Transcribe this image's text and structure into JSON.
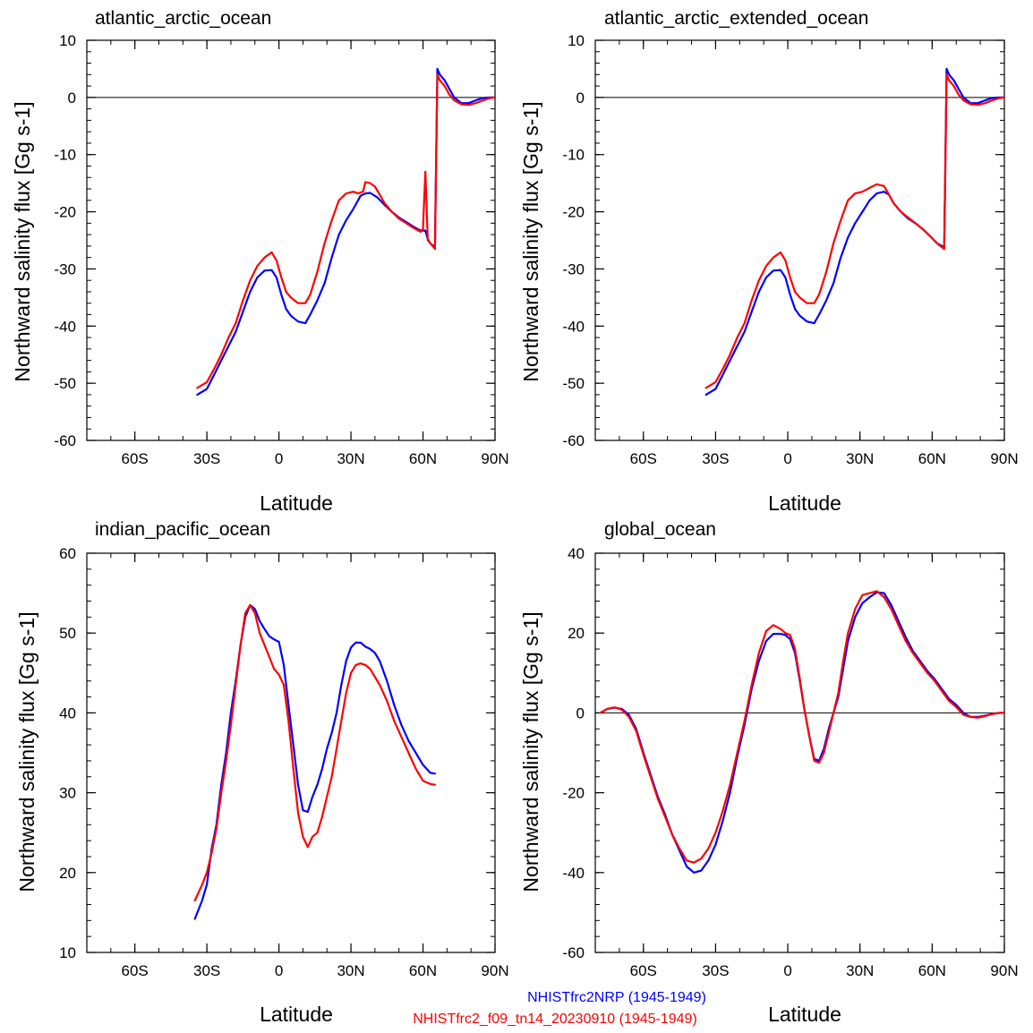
{
  "legend": [
    {
      "label": "NHISTfrc2NRP (1945-1949)",
      "color": "#0000ff"
    },
    {
      "label": "NHISTfrc2_f09_tn14_20230910 (1945-1949)",
      "color": "#ff0000"
    }
  ],
  "chart_data": [
    {
      "type": "line",
      "title": "atlantic_arctic_ocean",
      "xlabel": "Latitude",
      "ylabel": "Northward salinity flux [Gg s-1]",
      "xlim": [
        -80,
        90
      ],
      "ylim": [
        -60,
        10
      ],
      "xticks": [
        -60,
        -30,
        0,
        30,
        60,
        90
      ],
      "xticklabels": [
        "60S",
        "30S",
        "0",
        "30N",
        "60N",
        "90N"
      ],
      "yticks": [
        -60,
        -50,
        -40,
        -30,
        -20,
        -10,
        0,
        10
      ],
      "yticklabels": [
        "-60",
        "-50",
        "-40",
        "-30",
        "-20",
        "-10",
        "0",
        "10"
      ],
      "zero_line": true,
      "series": [
        {
          "name": "NHISTfrc2NRP (1945-1949)",
          "color": "#0000ff",
          "x": [
            -34,
            -30,
            -27,
            -24,
            -21,
            -18,
            -15,
            -12,
            -9,
            -6,
            -3,
            -1,
            1,
            3,
            5,
            8,
            11,
            13,
            16,
            19,
            22,
            25,
            28,
            31,
            34,
            36,
            38,
            41,
            44,
            47,
            50,
            53,
            56,
            59,
            61,
            62,
            63,
            65,
            66,
            67,
            69,
            71,
            73,
            76,
            79,
            82,
            85,
            88,
            90
          ],
          "y": [
            -52.0,
            -51.0,
            -48.5,
            -46.0,
            -43.5,
            -41.0,
            -37.5,
            -34.0,
            -31.5,
            -30.3,
            -30.2,
            -31.5,
            -34.5,
            -37.0,
            -38.2,
            -39.2,
            -39.5,
            -38.0,
            -35.5,
            -32.5,
            -28.0,
            -24.0,
            -21.5,
            -19.5,
            -17.2,
            -16.8,
            -16.7,
            -17.5,
            -18.8,
            -20.0,
            -21.0,
            -21.8,
            -22.6,
            -23.3,
            -23.3,
            -24.8,
            -25.5,
            -26.2,
            5.0,
            4.0,
            3.0,
            1.5,
            0.0,
            -1.0,
            -1.0,
            -0.5,
            -0.1,
            0.0,
            0.0
          ]
        },
        {
          "name": "NHISTfrc2_f09_tn14_20230910 (1945-1949)",
          "color": "#ff0000",
          "x": [
            -34,
            -30,
            -27,
            -24,
            -21,
            -18,
            -15,
            -12,
            -9,
            -6,
            -3,
            -1,
            1,
            3,
            5,
            8,
            11,
            13,
            16,
            19,
            22,
            25,
            28,
            31,
            33,
            35,
            36,
            38,
            40,
            42,
            44,
            47,
            50,
            53,
            56,
            59,
            60,
            61,
            62,
            63,
            65,
            66,
            67,
            69,
            71,
            73,
            76,
            79,
            82,
            85,
            88,
            90
          ],
          "y": [
            -50.8,
            -49.8,
            -47.5,
            -45.0,
            -42.0,
            -39.5,
            -35.5,
            -32.0,
            -29.5,
            -28.0,
            -27.1,
            -28.5,
            -31.5,
            -34.0,
            -35.0,
            -36.0,
            -36.0,
            -34.5,
            -30.5,
            -25.5,
            -21.5,
            -18.0,
            -16.8,
            -16.5,
            -16.8,
            -16.5,
            -14.8,
            -15.0,
            -15.6,
            -17.0,
            -18.5,
            -20.0,
            -21.2,
            -22.0,
            -22.8,
            -23.5,
            -23.0,
            -13.0,
            -25.0,
            -25.5,
            -26.5,
            4.0,
            3.0,
            2.0,
            0.5,
            -0.5,
            -1.2,
            -1.3,
            -1.0,
            -0.5,
            -0.1,
            0.0
          ]
        }
      ]
    },
    {
      "type": "line",
      "title": "atlantic_arctic_extended_ocean",
      "xlabel": "Latitude",
      "ylabel": "Northward salinity flux [Gg s-1]",
      "xlim": [
        -80,
        90
      ],
      "ylim": [
        -60,
        10
      ],
      "xticks": [
        -60,
        -30,
        0,
        30,
        60,
        90
      ],
      "xticklabels": [
        "60S",
        "30S",
        "0",
        "30N",
        "60N",
        "90N"
      ],
      "yticks": [
        -60,
        -50,
        -40,
        -30,
        -20,
        -10,
        0,
        10
      ],
      "yticklabels": [
        "-60",
        "-50",
        "-40",
        "-30",
        "-20",
        "-10",
        "0",
        "10"
      ],
      "zero_line": true,
      "series": [
        {
          "name": "NHISTfrc2NRP (1945-1949)",
          "color": "#0000ff",
          "x": [
            -34,
            -30,
            -27,
            -24,
            -21,
            -18,
            -15,
            -12,
            -9,
            -6,
            -3,
            -1,
            1,
            3,
            5,
            8,
            11,
            13,
            16,
            19,
            22,
            25,
            28,
            31,
            34,
            37,
            40,
            42,
            44,
            47,
            50,
            53,
            56,
            59,
            62,
            65,
            66,
            67,
            69,
            71,
            73,
            76,
            79,
            82,
            85,
            88,
            90
          ],
          "y": [
            -52.0,
            -51.0,
            -48.5,
            -46.0,
            -43.5,
            -41.0,
            -37.5,
            -34.0,
            -31.5,
            -30.3,
            -30.2,
            -31.5,
            -34.5,
            -37.0,
            -38.2,
            -39.2,
            -39.5,
            -38.0,
            -35.5,
            -32.5,
            -28.0,
            -24.5,
            -22.0,
            -20.0,
            -18.0,
            -16.8,
            -16.5,
            -17.0,
            -18.5,
            -20.0,
            -21.2,
            -22.0,
            -23.0,
            -24.2,
            -25.5,
            -26.2,
            5.0,
            4.0,
            3.0,
            1.5,
            0.0,
            -1.0,
            -1.0,
            -0.5,
            -0.1,
            0.0,
            0.0
          ]
        },
        {
          "name": "NHISTfrc2_f09_tn14_20230910 (1945-1949)",
          "color": "#ff0000",
          "x": [
            -34,
            -30,
            -27,
            -24,
            -21,
            -18,
            -15,
            -12,
            -9,
            -6,
            -3,
            -1,
            1,
            3,
            5,
            8,
            11,
            13,
            16,
            19,
            22,
            25,
            28,
            31,
            34,
            37,
            40,
            42,
            44,
            47,
            50,
            53,
            56,
            59,
            62,
            65,
            66,
            67,
            69,
            71,
            73,
            76,
            79,
            82,
            85,
            88,
            90
          ],
          "y": [
            -50.8,
            -49.8,
            -47.5,
            -45.0,
            -42.0,
            -39.5,
            -35.5,
            -32.0,
            -29.5,
            -28.0,
            -27.1,
            -28.5,
            -31.5,
            -34.0,
            -35.0,
            -36.0,
            -36.0,
            -34.5,
            -30.5,
            -25.5,
            -21.5,
            -18.0,
            -16.8,
            -16.5,
            -15.8,
            -15.2,
            -15.5,
            -17.0,
            -18.5,
            -20.0,
            -21.0,
            -22.0,
            -23.0,
            -24.2,
            -25.5,
            -26.5,
            4.0,
            3.0,
            2.0,
            0.5,
            -0.5,
            -1.2,
            -1.3,
            -1.0,
            -0.5,
            -0.1,
            0.0
          ]
        }
      ]
    },
    {
      "type": "line",
      "title": "indian_pacific_ocean",
      "xlabel": "Latitude",
      "ylabel": "Northward salinity flux [Gg s-1]",
      "xlim": [
        -80,
        90
      ],
      "ylim": [
        10,
        60
      ],
      "xticks": [
        -60,
        -30,
        0,
        30,
        60,
        90
      ],
      "xticklabels": [
        "60S",
        "30S",
        "0",
        "30N",
        "60N",
        "90N"
      ],
      "yticks": [
        10,
        20,
        30,
        40,
        50,
        60
      ],
      "yticklabels": [
        "10",
        "20",
        "30",
        "40",
        "50",
        "60"
      ],
      "zero_line": false,
      "series": [
        {
          "name": "NHISTfrc2NRP (1945-1949)",
          "color": "#0000ff",
          "x": [
            -35,
            -32,
            -30,
            -28,
            -26,
            -24,
            -22,
            -20,
            -18,
            -16,
            -14,
            -12,
            -10,
            -8,
            -6,
            -4,
            -2,
            0,
            2,
            4,
            6,
            8,
            10,
            12,
            14,
            16,
            18,
            20,
            22,
            24,
            26,
            28,
            30,
            32,
            34,
            36,
            38,
            40,
            42,
            45,
            48,
            51,
            54,
            57,
            60,
            63,
            65
          ],
          "y": [
            14.2,
            16.5,
            18.5,
            23.0,
            26.0,
            31.0,
            35.0,
            40.0,
            44.0,
            48.5,
            52.0,
            53.5,
            53.0,
            51.5,
            50.5,
            49.6,
            49.2,
            48.9,
            46.0,
            41.0,
            36.0,
            31.0,
            27.8,
            27.6,
            29.5,
            31.0,
            33.0,
            35.5,
            37.5,
            40.0,
            43.5,
            46.5,
            48.2,
            48.8,
            48.8,
            48.3,
            48.0,
            47.5,
            46.5,
            44.0,
            41.0,
            38.5,
            36.5,
            35.0,
            33.5,
            32.5,
            32.4
          ]
        },
        {
          "name": "NHISTfrc2_f09_tn14_20230910 (1945-1949)",
          "color": "#ff0000",
          "x": [
            -35,
            -32,
            -30,
            -28,
            -26,
            -24,
            -22,
            -20,
            -18,
            -16,
            -14,
            -12,
            -10,
            -8,
            -6,
            -4,
            -2,
            0,
            2,
            4,
            6,
            8,
            10,
            12,
            14,
            16,
            18,
            20,
            22,
            24,
            26,
            28,
            30,
            32,
            34,
            36,
            38,
            40,
            42,
            45,
            48,
            51,
            54,
            57,
            60,
            63,
            65
          ],
          "y": [
            16.5,
            18.5,
            20.0,
            22.5,
            25.5,
            30.0,
            34.0,
            38.5,
            43.5,
            48.5,
            52.5,
            53.5,
            52.5,
            50.0,
            48.5,
            47.0,
            45.5,
            44.8,
            43.5,
            39.0,
            33.0,
            27.5,
            24.5,
            23.2,
            24.5,
            25.0,
            27.0,
            29.5,
            32.0,
            35.5,
            39.0,
            42.5,
            45.0,
            46.0,
            46.2,
            46.0,
            45.5,
            44.5,
            43.5,
            41.5,
            39.0,
            37.0,
            35.0,
            33.0,
            31.5,
            31.1,
            31.0
          ]
        }
      ]
    },
    {
      "type": "line",
      "title": "global_ocean",
      "xlabel": "Latitude",
      "ylabel": "Northward salinity flux [Gg s-1]",
      "xlim": [
        -80,
        90
      ],
      "ylim": [
        -60,
        40
      ],
      "xticks": [
        -60,
        -30,
        0,
        30,
        60,
        90
      ],
      "xticklabels": [
        "60S",
        "30S",
        "0",
        "30N",
        "60N",
        "90N"
      ],
      "yticks": [
        -60,
        -40,
        -20,
        0,
        20,
        40
      ],
      "yticklabels": [
        "-60",
        "-40",
        "-20",
        "0",
        "20",
        "40"
      ],
      "zero_line": true,
      "series": [
        {
          "name": "NHISTfrc2NRP (1945-1949)",
          "color": "#0000ff",
          "x": [
            -78,
            -75,
            -72,
            -69,
            -66,
            -63,
            -60,
            -57,
            -54,
            -51,
            -48,
            -45,
            -42,
            -39,
            -36,
            -33,
            -30,
            -27,
            -24,
            -21,
            -18,
            -15,
            -12,
            -9,
            -6,
            -3,
            -1,
            1,
            3,
            5,
            7,
            9,
            11,
            13,
            15,
            17,
            19,
            21,
            23,
            25,
            28,
            31,
            34,
            37,
            40,
            43,
            46,
            49,
            52,
            55,
            58,
            61,
            64,
            67,
            70,
            73,
            76,
            79,
            82,
            85,
            88,
            90
          ],
          "y": [
            0.0,
            1.0,
            1.3,
            1.0,
            -0.5,
            -4.0,
            -10.0,
            -15.5,
            -21.0,
            -25.5,
            -30.5,
            -34.5,
            -38.5,
            -40.0,
            -39.5,
            -37.0,
            -33.0,
            -27.0,
            -20.0,
            -11.0,
            -3.0,
            6.0,
            13.0,
            18.0,
            19.8,
            19.8,
            19.5,
            18.5,
            15.0,
            8.0,
            0.5,
            -6.0,
            -11.5,
            -12.0,
            -9.0,
            -4.0,
            0.0,
            4.0,
            11.0,
            18.0,
            24.0,
            27.5,
            29.0,
            30.2,
            30.0,
            27.0,
            23.0,
            19.0,
            15.5,
            13.0,
            10.5,
            8.5,
            6.0,
            3.5,
            2.0,
            0.0,
            -1.0,
            -1.0,
            -0.7,
            -0.3,
            0.0,
            0.0
          ]
        },
        {
          "name": "NHISTfrc2_f09_tn14_20230910 (1945-1949)",
          "color": "#ff0000",
          "x": [
            -78,
            -75,
            -72,
            -69,
            -66,
            -63,
            -60,
            -57,
            -54,
            -51,
            -48,
            -45,
            -42,
            -39,
            -36,
            -33,
            -30,
            -27,
            -24,
            -21,
            -18,
            -15,
            -12,
            -9,
            -6,
            -3,
            -1,
            1,
            3,
            5,
            7,
            9,
            11,
            13,
            15,
            17,
            19,
            21,
            23,
            25,
            28,
            31,
            34,
            37,
            40,
            43,
            46,
            49,
            52,
            55,
            58,
            61,
            64,
            67,
            70,
            73,
            76,
            79,
            82,
            85,
            88,
            90
          ],
          "y": [
            0.0,
            1.0,
            1.4,
            0.8,
            -1.0,
            -4.5,
            -10.5,
            -16.0,
            -21.5,
            -26.0,
            -30.5,
            -34.0,
            -37.0,
            -37.5,
            -36.5,
            -34.0,
            -30.0,
            -24.5,
            -18.0,
            -10.0,
            -2.0,
            7.0,
            15.0,
            20.5,
            22.0,
            21.0,
            20.0,
            19.5,
            16.0,
            8.5,
            0.5,
            -6.0,
            -12.0,
            -12.5,
            -10.0,
            -5.0,
            0.0,
            5.0,
            13.0,
            20.0,
            26.0,
            29.5,
            30.0,
            30.5,
            29.0,
            26.0,
            22.0,
            18.0,
            15.0,
            12.5,
            10.0,
            8.0,
            5.5,
            3.0,
            1.5,
            -0.5,
            -1.0,
            -1.2,
            -0.8,
            -0.3,
            0.0,
            0.0
          ]
        }
      ]
    }
  ]
}
